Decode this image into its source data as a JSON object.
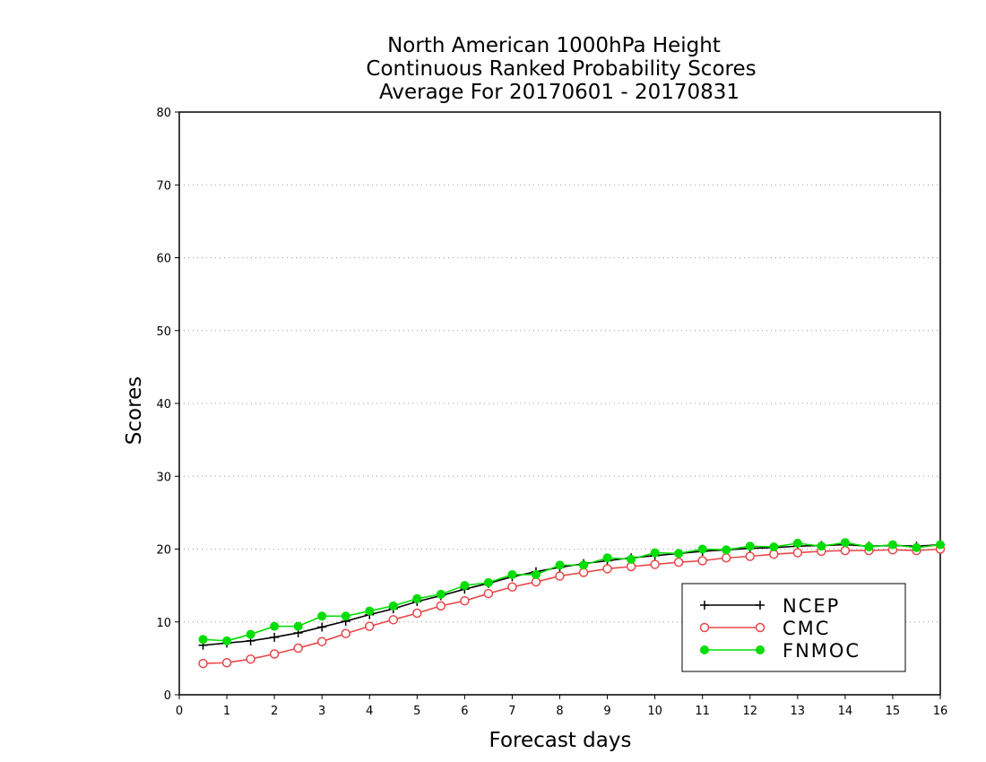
{
  "chart_data": {
    "type": "line",
    "title_lines": [
      "North American 1000hPa Height",
      "Continuous Ranked Probability Scores",
      "Average For 20170601 - 20170831"
    ],
    "xlabel": "Forecast days",
    "ylabel": "Scores",
    "xlim": [
      0,
      16
    ],
    "ylim": [
      0,
      80
    ],
    "xticks": [
      0,
      1,
      2,
      3,
      4,
      5,
      6,
      7,
      8,
      9,
      10,
      11,
      12,
      13,
      14,
      15,
      16
    ],
    "yticks": [
      0,
      10,
      20,
      30,
      40,
      50,
      60,
      70,
      80
    ],
    "grid": "horizontal dotted",
    "legend_position": "bottom-right",
    "x": [
      0.5,
      1,
      1.5,
      2,
      2.5,
      3,
      3.5,
      4,
      4.5,
      5,
      5.5,
      6,
      6.5,
      7,
      7.5,
      8,
      8.5,
      9,
      9.5,
      10,
      10.5,
      11,
      11.5,
      12,
      12.5,
      13,
      13.5,
      14,
      14.5,
      15,
      15.5,
      16
    ],
    "series": [
      {
        "name": "NCEP",
        "color": "#000000",
        "marker": "plus",
        "values": [
          6.8,
          7.1,
          7.4,
          7.9,
          8.5,
          9.3,
          10.1,
          11.0,
          11.8,
          12.8,
          13.6,
          14.5,
          15.3,
          16.2,
          16.9,
          17.5,
          18.0,
          18.4,
          18.8,
          19.1,
          19.4,
          19.7,
          19.9,
          20.1,
          20.2,
          20.4,
          20.5,
          20.6,
          20.4,
          20.5,
          20.4,
          20.6
        ]
      },
      {
        "name": "CMC",
        "color": "#e8474a",
        "marker": "open-circle",
        "values": [
          4.3,
          4.4,
          4.9,
          5.6,
          6.4,
          7.3,
          8.4,
          9.4,
          10.3,
          11.2,
          12.2,
          12.9,
          13.9,
          14.8,
          15.5,
          16.3,
          16.8,
          17.3,
          17.6,
          17.9,
          18.2,
          18.4,
          18.8,
          19.0,
          19.3,
          19.5,
          19.7,
          19.8,
          19.8,
          19.9,
          19.8,
          20.0
        ]
      },
      {
        "name": "FNMOC",
        "color": "#00dd00",
        "marker": "filled-circle",
        "values": [
          7.6,
          7.4,
          8.3,
          9.4,
          9.4,
          10.8,
          10.8,
          11.5,
          12.2,
          13.2,
          13.8,
          15.0,
          15.4,
          16.5,
          16.5,
          17.8,
          17.8,
          18.8,
          18.6,
          19.5,
          19.4,
          20.0,
          19.9,
          20.4,
          20.3,
          20.8,
          20.4,
          20.9,
          20.3,
          20.6,
          20.2,
          20.6
        ]
      }
    ]
  }
}
